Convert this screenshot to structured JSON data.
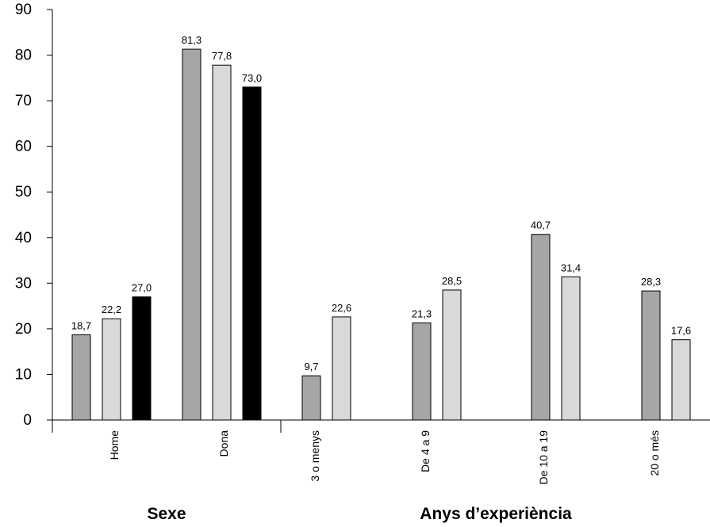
{
  "chart_data": {
    "type": "bar",
    "ylim": [
      0,
      90
    ],
    "yticks": [
      0,
      10,
      20,
      30,
      40,
      50,
      60,
      70,
      80,
      90
    ],
    "grid": false,
    "legend": "none",
    "groups": [
      {
        "label": "Sexe",
        "categories": [
          {
            "label": "Home",
            "values": [
              18.7,
              22.2,
              27.0
            ],
            "value_labels": [
              "18,7",
              "22,2",
              "27,0"
            ]
          },
          {
            "label": "Dona",
            "values": [
              81.3,
              77.8,
              73.0
            ],
            "value_labels": [
              "81,3",
              "77,8",
              "73,0"
            ]
          }
        ]
      },
      {
        "label": "Anys d’experiència",
        "categories": [
          {
            "label": "3 o menys",
            "values": [
              9.7,
              22.6
            ],
            "value_labels": [
              "9,7",
              "22,6"
            ]
          },
          {
            "label": "De 4 a 9",
            "values": [
              21.3,
              28.5
            ],
            "value_labels": [
              "21,3",
              "28,5"
            ]
          },
          {
            "label": "De 10 a 19",
            "values": [
              40.7,
              31.4
            ],
            "value_labels": [
              "40,7",
              "31,4"
            ]
          },
          {
            "label": "20 o més",
            "values": [
              28.3,
              17.6
            ],
            "value_labels": [
              "28,3",
              "17,6"
            ]
          }
        ]
      }
    ],
    "series_colors": [
      "#a6a6a6",
      "#d9d9d9",
      "#000000"
    ]
  }
}
